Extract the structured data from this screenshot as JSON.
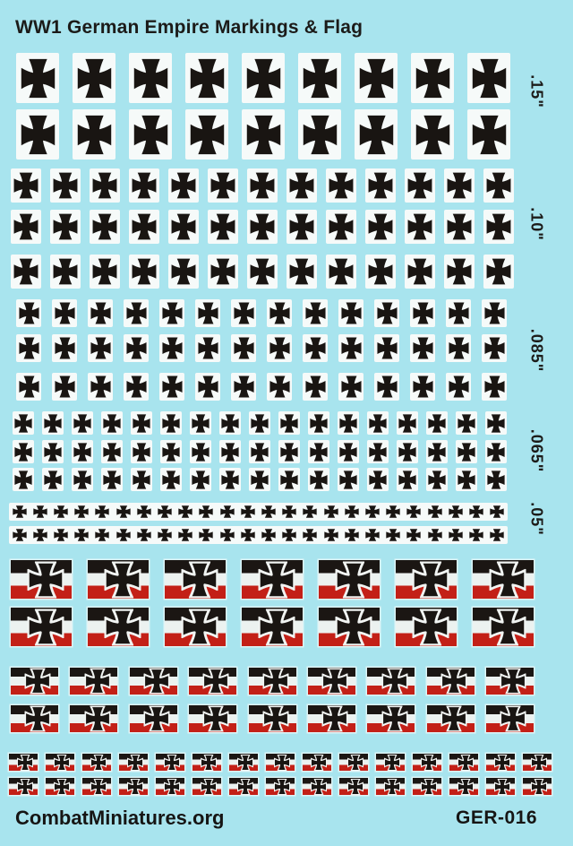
{
  "title": "WW1 German Empire Markings & Flag",
  "footer": {
    "left": "CombatMiniatures.org",
    "right": "GER-016"
  },
  "colors": {
    "background": "#a8e4ee",
    "decal_backing": "#f6faf9",
    "cross_black": "#191512",
    "flag_black": "#1b1613",
    "flag_white": "#ecf2f0",
    "flag_red": "#c32017"
  },
  "cross_sections": [
    {
      "decal": "iron-cross",
      "size_label": ".15\"",
      "rows": [
        9,
        9
      ]
    },
    {
      "decal": "iron-cross",
      "size_label": ".10\"",
      "rows": [
        13,
        13,
        13
      ]
    },
    {
      "decal": "iron-cross",
      "size_label": ".085\"",
      "rows": [
        14,
        14,
        14
      ]
    },
    {
      "decal": "iron-cross",
      "size_label": ".065\"",
      "rows": [
        17,
        17,
        17
      ]
    },
    {
      "decal": "iron-cross",
      "size_label": ".05\"",
      "rows": [
        24,
        24
      ]
    }
  ],
  "flag_sections": [
    {
      "decal": "german-empire-war-flag",
      "size": "large",
      "rows": [
        7,
        7
      ]
    },
    {
      "decal": "german-empire-war-flag",
      "size": "medium",
      "rows": [
        9,
        9
      ]
    },
    {
      "decal": "german-empire-war-flag",
      "size": "small",
      "rows": [
        15,
        15
      ]
    }
  ]
}
